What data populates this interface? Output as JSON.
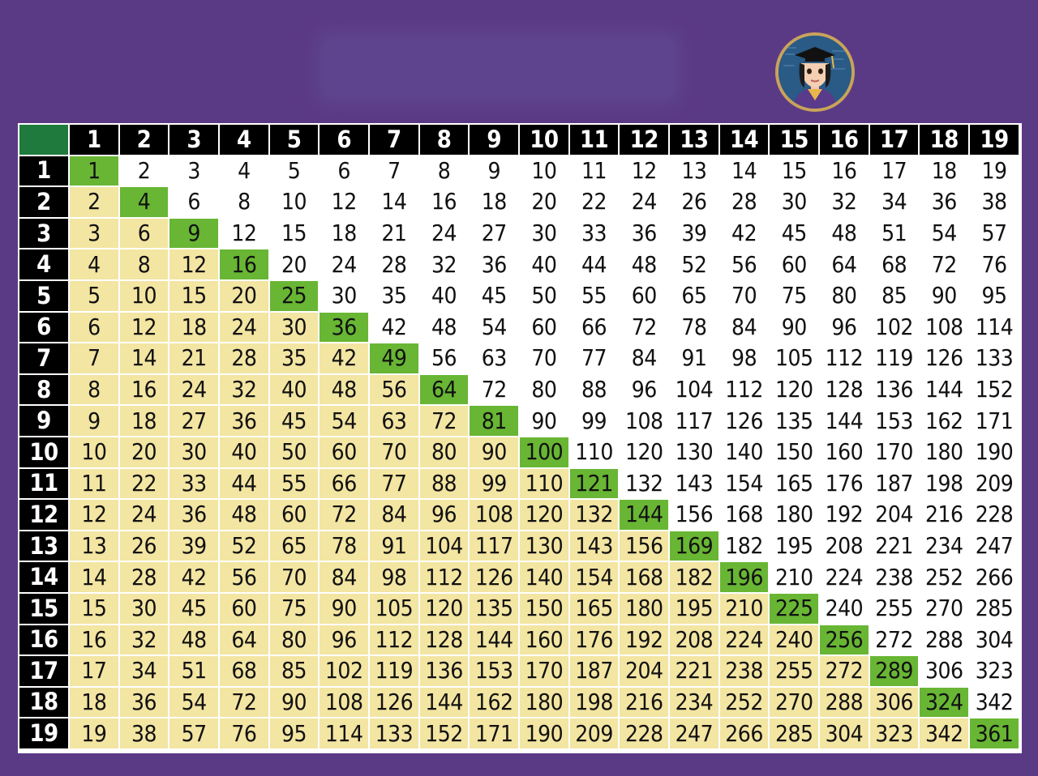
{
  "colors": {
    "background": "#5b3a85",
    "header": "#000000",
    "corner": "#1f7a3e",
    "upper_cell": "#ffffff",
    "lower_cell": "#f3e5a2",
    "diagonal_cell": "#68b634"
  },
  "avatar_icon": "graduate-avatar-icon",
  "table": {
    "size": 19,
    "column_headers": [
      "1",
      "2",
      "3",
      "4",
      "5",
      "6",
      "7",
      "8",
      "9",
      "10",
      "11",
      "12",
      "13",
      "14",
      "15",
      "16",
      "17",
      "18",
      "19"
    ],
    "row_headers": [
      "1",
      "2",
      "3",
      "4",
      "5",
      "6",
      "7",
      "8",
      "9",
      "10",
      "11",
      "12",
      "13",
      "14",
      "15",
      "16",
      "17",
      "18",
      "19"
    ],
    "rows": [
      [
        "1",
        "2",
        "3",
        "4",
        "5",
        "6",
        "7",
        "8",
        "9",
        "10",
        "11",
        "12",
        "13",
        "14",
        "15",
        "16",
        "17",
        "18",
        "19"
      ],
      [
        "2",
        "4",
        "6",
        "8",
        "10",
        "12",
        "14",
        "16",
        "18",
        "20",
        "22",
        "24",
        "26",
        "28",
        "30",
        "32",
        "34",
        "36",
        "38"
      ],
      [
        "3",
        "6",
        "9",
        "12",
        "15",
        "18",
        "21",
        "24",
        "27",
        "30",
        "33",
        "36",
        "39",
        "42",
        "45",
        "48",
        "51",
        "54",
        "57"
      ],
      [
        "4",
        "8",
        "12",
        "16",
        "20",
        "24",
        "28",
        "32",
        "36",
        "40",
        "44",
        "48",
        "52",
        "56",
        "60",
        "64",
        "68",
        "72",
        "76"
      ],
      [
        "5",
        "10",
        "15",
        "20",
        "25",
        "30",
        "35",
        "40",
        "45",
        "50",
        "55",
        "60",
        "65",
        "70",
        "75",
        "80",
        "85",
        "90",
        "95"
      ],
      [
        "6",
        "12",
        "18",
        "24",
        "30",
        "36",
        "42",
        "48",
        "54",
        "60",
        "66",
        "72",
        "78",
        "84",
        "90",
        "96",
        "102",
        "108",
        "114"
      ],
      [
        "7",
        "14",
        "21",
        "28",
        "35",
        "42",
        "49",
        "56",
        "63",
        "70",
        "77",
        "84",
        "91",
        "98",
        "105",
        "112",
        "119",
        "126",
        "133"
      ],
      [
        "8",
        "16",
        "24",
        "32",
        "40",
        "48",
        "56",
        "64",
        "72",
        "80",
        "88",
        "96",
        "104",
        "112",
        "120",
        "128",
        "136",
        "144",
        "152"
      ],
      [
        "9",
        "18",
        "27",
        "36",
        "45",
        "54",
        "63",
        "72",
        "81",
        "90",
        "99",
        "108",
        "117",
        "126",
        "135",
        "144",
        "153",
        "162",
        "171"
      ],
      [
        "10",
        "20",
        "30",
        "40",
        "50",
        "60",
        "70",
        "80",
        "90",
        "100",
        "110",
        "120",
        "130",
        "140",
        "150",
        "160",
        "170",
        "180",
        "190"
      ],
      [
        "11",
        "22",
        "33",
        "44",
        "55",
        "66",
        "77",
        "88",
        "99",
        "110",
        "121",
        "132",
        "143",
        "154",
        "165",
        "176",
        "187",
        "198",
        "209"
      ],
      [
        "12",
        "24",
        "36",
        "48",
        "60",
        "72",
        "84",
        "96",
        "108",
        "120",
        "132",
        "144",
        "156",
        "168",
        "180",
        "192",
        "204",
        "216",
        "228"
      ],
      [
        "13",
        "26",
        "39",
        "52",
        "65",
        "78",
        "91",
        "104",
        "117",
        "130",
        "143",
        "156",
        "169",
        "182",
        "195",
        "208",
        "221",
        "234",
        "247"
      ],
      [
        "14",
        "28",
        "42",
        "56",
        "70",
        "84",
        "98",
        "112",
        "126",
        "140",
        "154",
        "168",
        "182",
        "196",
        "210",
        "224",
        "238",
        "252",
        "266"
      ],
      [
        "15",
        "30",
        "45",
        "60",
        "75",
        "90",
        "105",
        "120",
        "135",
        "150",
        "165",
        "180",
        "195",
        "210",
        "225",
        "240",
        "255",
        "270",
        "285"
      ],
      [
        "16",
        "32",
        "48",
        "64",
        "80",
        "96",
        "112",
        "128",
        "144",
        "160",
        "176",
        "192",
        "208",
        "224",
        "240",
        "256",
        "272",
        "288",
        "304"
      ],
      [
        "17",
        "34",
        "51",
        "68",
        "85",
        "102",
        "119",
        "136",
        "153",
        "170",
        "187",
        "204",
        "221",
        "238",
        "255",
        "272",
        "289",
        "306",
        "323"
      ],
      [
        "18",
        "36",
        "54",
        "72",
        "90",
        "108",
        "126",
        "144",
        "162",
        "180",
        "198",
        "216",
        "234",
        "252",
        "270",
        "288",
        "306",
        "324",
        "342"
      ],
      [
        "19",
        "38",
        "57",
        "76",
        "95",
        "114",
        "133",
        "152",
        "171",
        "190",
        "209",
        "228",
        "247",
        "266",
        "285",
        "304",
        "323",
        "342",
        "361"
      ]
    ]
  }
}
